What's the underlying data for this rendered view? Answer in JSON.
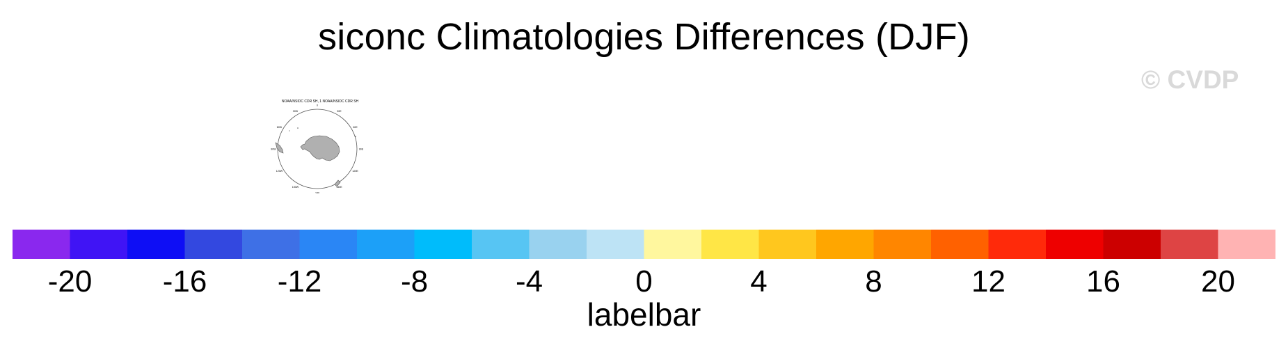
{
  "title": "siconc Climatologies Differences (DJF)",
  "watermark": "© CVDP",
  "panel": {
    "title": "NOAA/NSIDC CDR SH, 1 NOAA/NSIDC CDR SH",
    "lon_labels": [
      "0",
      "30E",
      "60E",
      "90E",
      "120E",
      "150E",
      "180",
      "150W",
      "120W",
      "90W",
      "60W",
      "30W"
    ],
    "land_color": "#b0b0b0"
  },
  "labelbar": {
    "title": "labelbar",
    "ticks": [
      "-20",
      "-16",
      "-12",
      "-8",
      "-4",
      "0",
      "4",
      "8",
      "12",
      "16",
      "20"
    ],
    "levels": [
      -22,
      -20,
      -18,
      -16,
      -14,
      -12,
      -10,
      -8,
      -6,
      -4,
      -2,
      0,
      2,
      4,
      6,
      8,
      10,
      12,
      14,
      16,
      18,
      20,
      22
    ],
    "colors": [
      "#8a28ee",
      "#4014f5",
      "#0e0ef5",
      "#3348e0",
      "#3e70e6",
      "#2a86f5",
      "#1ca0f8",
      "#00bcfb",
      "#57c5f3",
      "#99d2ef",
      "#bde3f5",
      "#fff79e",
      "#ffe646",
      "#ffc71e",
      "#ffa600",
      "#ff8600",
      "#ff6100",
      "#ff2a0a",
      "#ee0000",
      "#cc0000",
      "#de4444",
      "#ffb3b3"
    ]
  }
}
